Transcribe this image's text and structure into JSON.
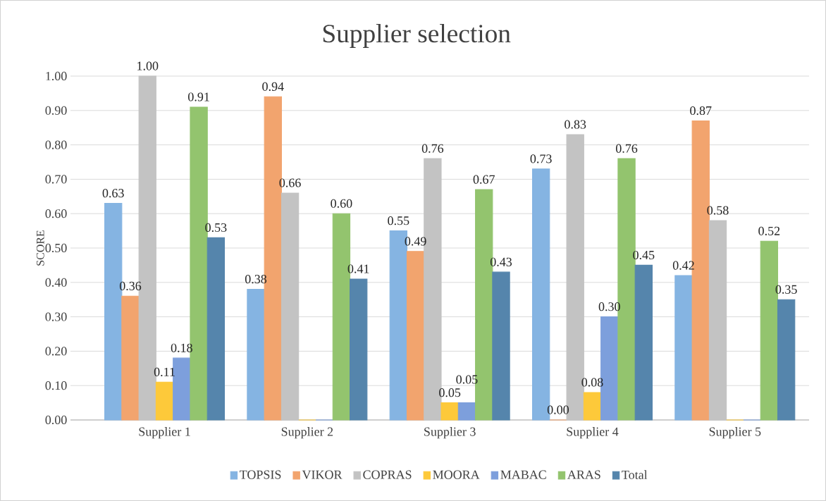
{
  "chart_data": {
    "type": "bar",
    "title": "Supplier selection",
    "ylabel": "SCORE",
    "categories": [
      "Supplier 1",
      "Supplier 2",
      "Supplier 3",
      "Supplier 4",
      "Supplier 5"
    ],
    "series": [
      {
        "name": "TOPSIS",
        "color": "#85b4e2",
        "values": [
          0.63,
          0.38,
          0.55,
          0.73,
          0.42
        ],
        "value_labels": [
          "0.63",
          "0.38",
          "0.55",
          "0.73",
          "0.42"
        ]
      },
      {
        "name": "VIKOR",
        "color": "#f2a46e",
        "values": [
          0.36,
          0.94,
          0.49,
          0.0,
          0.87
        ],
        "value_labels": [
          "0.36",
          "0.94",
          "0.49",
          "0.00",
          "0.87"
        ]
      },
      {
        "name": "COPRAS",
        "color": "#c3c3c3",
        "values": [
          1.0,
          0.66,
          0.76,
          0.83,
          0.58
        ],
        "value_labels": [
          "1.00",
          "0.66",
          "0.76",
          "0.83",
          "0.58"
        ]
      },
      {
        "name": "MOORA",
        "color": "#fdc93a",
        "values": [
          0.11,
          0.0,
          0.05,
          0.08,
          0.0
        ],
        "value_labels": [
          "0.11",
          null,
          "0.05",
          "0.08",
          null
        ]
      },
      {
        "name": "MABAC",
        "color": "#7d9fdc",
        "values": [
          0.18,
          0.0,
          0.05,
          0.3,
          0.0
        ],
        "value_labels": [
          "0.18",
          null,
          "0.05",
          "0.30",
          null
        ]
      },
      {
        "name": "ARAS",
        "color": "#93c46e",
        "values": [
          0.91,
          0.6,
          0.67,
          0.76,
          0.52
        ],
        "value_labels": [
          "0.91",
          "0.60",
          "0.67",
          "0.76",
          "0.52"
        ]
      },
      {
        "name": "Total",
        "color": "#5585ac",
        "values": [
          0.53,
          0.41,
          0.43,
          0.45,
          0.35
        ],
        "value_labels": [
          "0.53",
          "0.41",
          "0.43",
          "0.45",
          "0.35"
        ]
      }
    ],
    "ylim": [
      0,
      1.0
    ],
    "yticks": [
      {
        "value": 0,
        "label": "0.00"
      },
      {
        "value": 0.1,
        "label": "0.10"
      },
      {
        "value": 0.2,
        "label": "0.20"
      },
      {
        "value": 0.3,
        "label": "0.30"
      },
      {
        "value": 0.4,
        "label": "0.40"
      },
      {
        "value": 0.5,
        "label": "0.50"
      },
      {
        "value": 0.6,
        "label": "0.60"
      },
      {
        "value": 0.7,
        "label": "0.70"
      },
      {
        "value": 0.8,
        "label": "0.80"
      },
      {
        "value": 0.9,
        "label": "0.90"
      },
      {
        "value": 1.0,
        "label": "1.00"
      }
    ],
    "grid": "y",
    "legend": "bottom"
  }
}
